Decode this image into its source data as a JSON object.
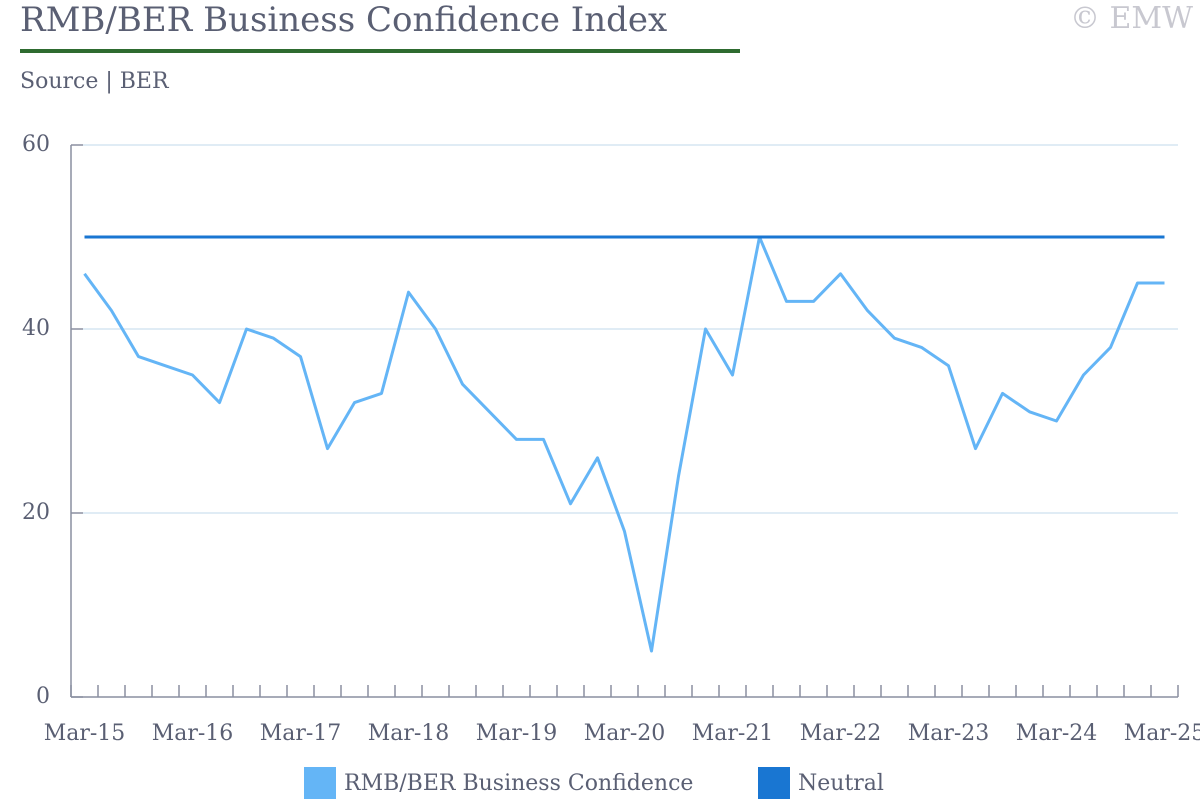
{
  "chart_data": {
    "type": "line",
    "title": "RMB/BER Business Confidence Index",
    "subtitle": "Source | BER",
    "copyright": "© EMW",
    "categories": [
      "Mar-15",
      null,
      null,
      null,
      "Mar-16",
      null,
      null,
      null,
      "Mar-17",
      null,
      null,
      null,
      "Mar-18",
      null,
      null,
      null,
      "Mar-19",
      null,
      null,
      null,
      "Mar-20",
      null,
      null,
      null,
      "Mar-21",
      null,
      null,
      null,
      "Mar-22",
      null,
      null,
      null,
      "Mar-23",
      null,
      null,
      null,
      "Mar-24",
      null,
      null,
      null,
      "Mar-25"
    ],
    "series": [
      {
        "name": "RMB/BER Business Confidence",
        "color": "#64b5f6",
        "values": [
          46,
          42,
          37,
          36,
          35,
          32,
          40,
          39,
          37,
          27,
          32,
          33,
          44,
          40,
          34,
          31,
          28,
          28,
          21,
          26,
          18,
          5,
          24,
          40,
          35,
          50,
          43,
          43,
          46,
          42,
          39,
          38,
          36,
          27,
          33,
          31,
          30,
          35,
          38,
          45,
          45
        ]
      },
      {
        "name": "Neutral",
        "color": "#1976d2",
        "values": [
          50,
          50,
          50,
          50,
          50,
          50,
          50,
          50,
          50,
          50,
          50,
          50,
          50,
          50,
          50,
          50,
          50,
          50,
          50,
          50,
          50,
          50,
          50,
          50,
          50,
          50,
          50,
          50,
          50,
          50,
          50,
          50,
          50,
          50,
          50,
          50,
          50,
          50,
          50,
          50,
          50
        ]
      }
    ],
    "ylim": [
      0,
      60
    ],
    "yticks": [
      0,
      20,
      40,
      60
    ],
    "grid": true,
    "legend": "bottom"
  }
}
